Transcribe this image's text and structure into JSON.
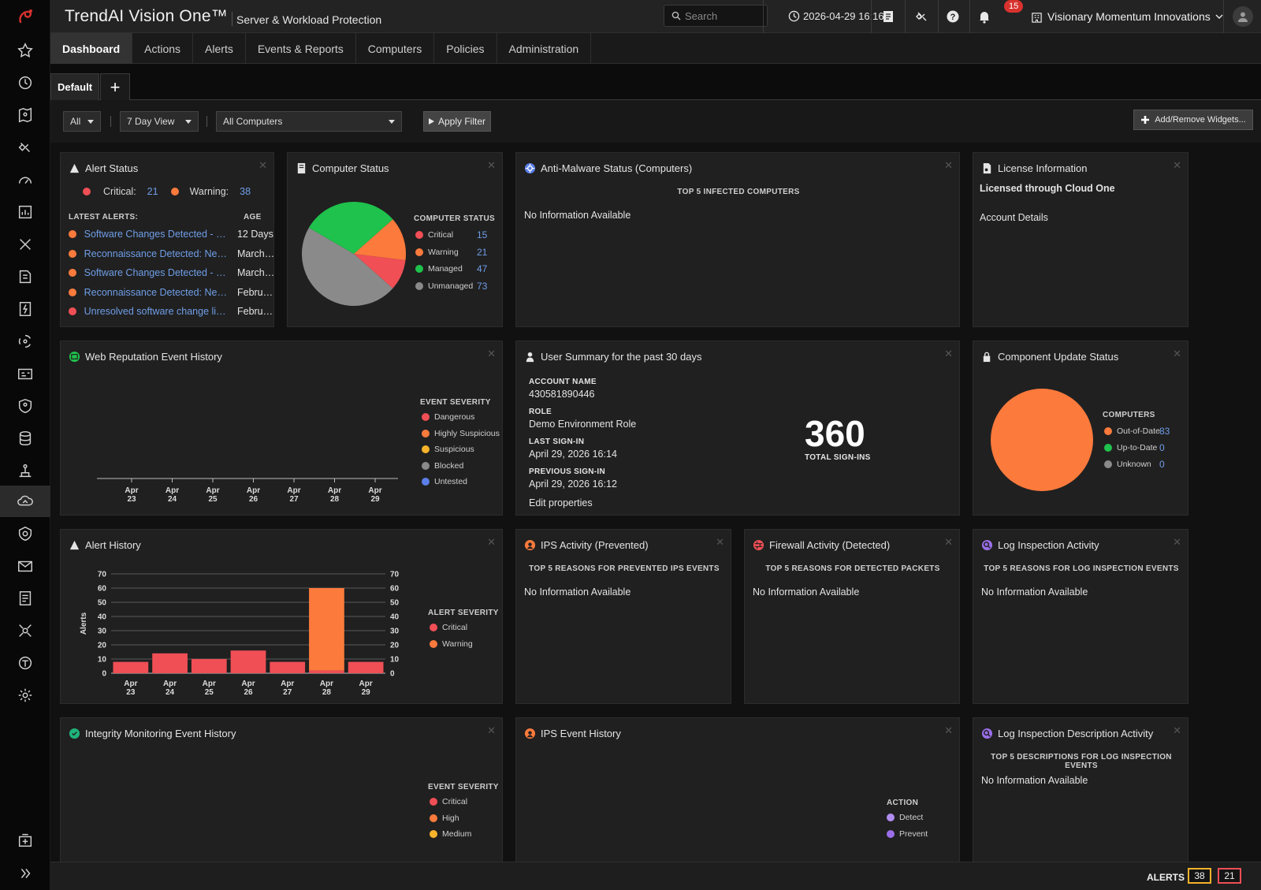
{
  "brand": {
    "name": "TrendAI Vision One™",
    "product": "Server & Workload Protection"
  },
  "topbar": {
    "search_placeholder": "Search",
    "datetime": "2026-04-29 16:16",
    "notifications_count": "15",
    "organization": "Visionary Momentum Innovations"
  },
  "nav": {
    "tabs": [
      {
        "label": "Dashboard",
        "active": true
      },
      {
        "label": "Actions"
      },
      {
        "label": "Alerts"
      },
      {
        "label": "Events & Reports"
      },
      {
        "label": "Computers"
      },
      {
        "label": "Policies"
      },
      {
        "label": "Administration"
      }
    ]
  },
  "dashboard_tabs": {
    "default_label": "Default",
    "add_label": "+"
  },
  "filters": {
    "scope": "All",
    "period": "7 Day View",
    "computers": "All Computers",
    "apply_label": "Apply Filter",
    "add_remove_label": "Add/Remove Widgets..."
  },
  "alert_status": {
    "title": "Alert Status",
    "critical_label": "Critical:",
    "critical_count": "21",
    "warning_label": "Warning:",
    "warning_count": "38",
    "latest_label": "LATEST ALERTS:",
    "age_label": "AGE",
    "alerts": [
      {
        "title": "Software Changes Detected - ec...",
        "age": "12 Days",
        "severity": "warning"
      },
      {
        "title": "Reconnaissance Detected: Netw...",
        "age": "March ...",
        "severity": "warning"
      },
      {
        "title": "Software Changes Detected - ec...",
        "age": "March ...",
        "severity": "warning"
      },
      {
        "title": "Reconnaissance Detected: Netw...",
        "age": "Februa...",
        "severity": "warning"
      },
      {
        "title": "Unresolved software change limi...",
        "age": "Februa...",
        "severity": "critical"
      }
    ]
  },
  "computer_status": {
    "title": "Computer Status",
    "legend_title": "COMPUTER STATUS",
    "items": [
      {
        "label": "Critical",
        "value": 15,
        "color": "#ef4f55"
      },
      {
        "label": "Warning",
        "value": 21,
        "color": "#fb7a3c"
      },
      {
        "label": "Managed",
        "value": 47,
        "color": "#1fc24c"
      },
      {
        "label": "Unmanaged",
        "value": 73,
        "color": "#8a8a8a"
      }
    ]
  },
  "anti_malware": {
    "title": "Anti-Malware Status (Computers)",
    "subtitle": "TOP 5 INFECTED COMPUTERS",
    "empty": "No Information Available"
  },
  "license": {
    "title": "License Information",
    "text": "Licensed through Cloud One",
    "link": "Account Details"
  },
  "web_reputation": {
    "title": "Web Reputation Event History",
    "legend_title": "EVENT SEVERITY",
    "legend": [
      {
        "label": "Dangerous",
        "color": "#ef4f55"
      },
      {
        "label": "Highly Suspicious",
        "color": "#fb7a3c"
      },
      {
        "label": "Suspicious",
        "color": "#f7b32b"
      },
      {
        "label": "Blocked",
        "color": "#8a8a8a"
      },
      {
        "label": "Untested",
        "color": "#5b7fe8"
      }
    ],
    "x_ticks": [
      "Apr 23",
      "Apr 24",
      "Apr 25",
      "Apr 26",
      "Apr 27",
      "Apr 28",
      "Apr 29"
    ]
  },
  "user_summary": {
    "title": "User Summary for the past 30 days",
    "account_label": "ACCOUNT NAME",
    "account_value": "430581890446",
    "role_label": "ROLE",
    "role_value": "Demo Environment Role",
    "last_label": "LAST SIGN-IN",
    "last_value": "April 29, 2026 16:14",
    "prev_label": "PREVIOUS SIGN-IN",
    "prev_value": "April 29, 2026 16:12",
    "edit_link": "Edit properties",
    "total_value": "360",
    "total_label": "TOTAL SIGN-INS"
  },
  "component_update": {
    "title": "Component Update Status",
    "legend_title": "COMPUTERS",
    "items": [
      {
        "label": "Out-of-Date",
        "value": 83,
        "color": "#fb7a3c"
      },
      {
        "label": "Up-to-Date",
        "value": 0,
        "color": "#1fc24c"
      },
      {
        "label": "Unknown",
        "value": 0,
        "color": "#8a8a8a"
      }
    ]
  },
  "alert_history": {
    "title": "Alert History",
    "legend_title": "ALERT SEVERITY",
    "legend": [
      {
        "label": "Critical",
        "color": "#ef4f55"
      },
      {
        "label": "Warning",
        "color": "#fb7a3c"
      }
    ]
  },
  "ips_prevented": {
    "title": "IPS Activity (Prevented)",
    "subtitle": "TOP 5 REASONS FOR PREVENTED IPS EVENTS",
    "empty": "No Information Available"
  },
  "firewall": {
    "title": "Firewall Activity (Detected)",
    "subtitle": "TOP 5 REASONS FOR DETECTED PACKETS",
    "empty": "No Information Available"
  },
  "log_inspection": {
    "title": "Log Inspection Activity",
    "subtitle": "TOP 5 REASONS FOR LOG INSPECTION EVENTS",
    "empty": "No Information Available"
  },
  "integrity": {
    "title": "Integrity Monitoring Event History",
    "legend_title": "EVENT SEVERITY",
    "legend": [
      {
        "label": "Critical",
        "color": "#ef4f55"
      },
      {
        "label": "High",
        "color": "#fb7a3c"
      },
      {
        "label": "Medium",
        "color": "#f7b32b"
      }
    ]
  },
  "ips_history": {
    "title": "IPS Event History",
    "legend_title": "ACTION",
    "legend": [
      {
        "label": "Detect",
        "color": "#b18cf0"
      },
      {
        "label": "Prevent",
        "color": "#9a6ee8"
      }
    ]
  },
  "log_description": {
    "title": "Log Inspection Description Activity",
    "subtitle": "TOP 5 DESCRIPTIONS FOR LOG INSPECTION EVENTS",
    "empty": "No Information Available"
  },
  "statusbar": {
    "label": "ALERTS",
    "warning_count": "38",
    "critical_count": "21",
    "warning_color": "#f7b32b",
    "critical_color": "#ef4f55"
  },
  "chart_data": [
    {
      "type": "bar",
      "title": "Alert History",
      "ylabel": "Alerts",
      "categories": [
        "Apr 23",
        "Apr 24",
        "Apr 25",
        "Apr 26",
        "Apr 27",
        "Apr 28",
        "Apr 29"
      ],
      "series": [
        {
          "name": "Critical",
          "values": [
            8,
            14,
            10,
            16,
            8,
            2,
            8
          ],
          "color": "#ef4f55"
        },
        {
          "name": "Warning",
          "values": [
            0,
            0,
            0,
            0,
            0,
            58,
            0
          ],
          "color": "#fb7a3c"
        }
      ],
      "ylim": [
        0,
        70
      ],
      "y_ticks": [
        0,
        10,
        20,
        30,
        40,
        50,
        60,
        70
      ]
    },
    {
      "type": "pie",
      "title": "Computer Status",
      "categories": [
        "Critical",
        "Warning",
        "Managed",
        "Unmanaged"
      ],
      "values": [
        15,
        21,
        47,
        73
      ]
    },
    {
      "type": "pie",
      "title": "Component Update Status",
      "categories": [
        "Out-of-Date",
        "Up-to-Date",
        "Unknown"
      ],
      "values": [
        83,
        0,
        0
      ]
    }
  ]
}
